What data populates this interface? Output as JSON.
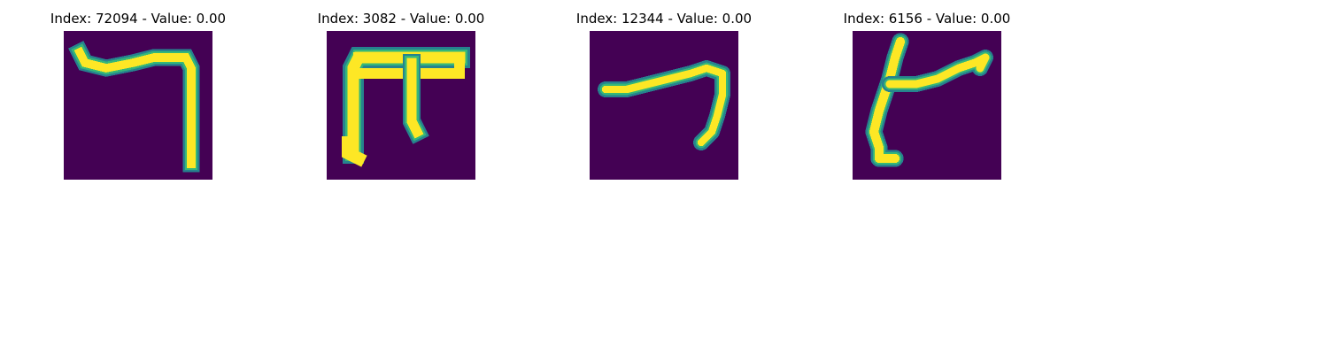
{
  "colors": {
    "background": "#440154",
    "stroke_core": "#fde725",
    "stroke_edge": "#b5de2b",
    "stroke_mid": "#35b779",
    "stroke_outer": "#26828e"
  },
  "panels": [
    {
      "title": "Index: 72094 - Value: 0.00"
    },
    {
      "title": "Index: 3082 - Value: 0.00"
    },
    {
      "title": "Index: 12344 - Value: 0.00"
    },
    {
      "title": "Index: 6156 - Value: 0.00"
    }
  ]
}
